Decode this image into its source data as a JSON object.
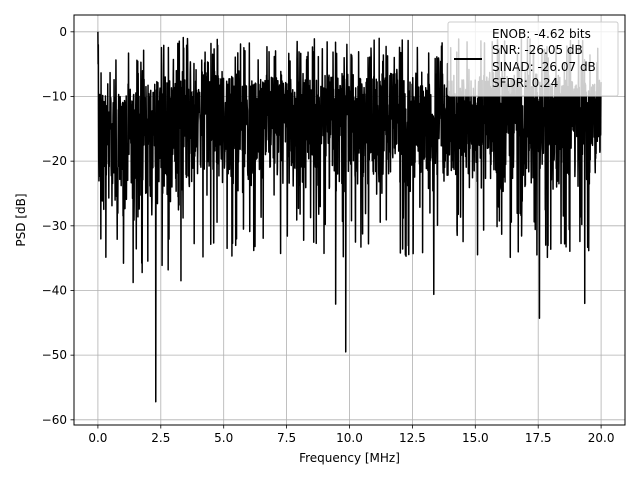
{
  "chart_data": {
    "type": "line",
    "title": "",
    "xlabel": "Frequency [MHz]",
    "ylabel": "PSD [dB]",
    "xlim": [
      -0.95,
      20.95
    ],
    "ylim": [
      -60.8,
      2.6
    ],
    "xticks": [
      0.0,
      2.5,
      5.0,
      7.5,
      10.0,
      12.5,
      15.0,
      17.5,
      20.0
    ],
    "xtick_labels": [
      "0.0",
      "2.5",
      "5.0",
      "7.5",
      "10.0",
      "12.5",
      "15.0",
      "17.5",
      "20.0"
    ],
    "yticks": [
      0,
      -10,
      -20,
      -30,
      -40,
      -50,
      -60
    ],
    "ytick_labels": [
      "0",
      "−10",
      "−20",
      "−30",
      "−40",
      "−50",
      "−60"
    ],
    "grid": true,
    "series": [
      {
        "color": "#000000",
        "x_range": [
          0.0,
          20.0
        ],
        "peak": {
          "x": 0.0,
          "y": 0.0
        },
        "notable_dips": [
          {
            "x": 2.3,
            "y": -57.2
          },
          {
            "x": 9.85,
            "y": -49.5
          },
          {
            "x": 17.55,
            "y": -44.3
          },
          {
            "x": 9.45,
            "y": -42.1
          },
          {
            "x": 19.35,
            "y": -42.0
          },
          {
            "x": 13.35,
            "y": -40.6
          }
        ]
      }
    ],
    "legend": {
      "placement": "upper-right",
      "entries": [
        "ENOB: -4.62 bits",
        "SNR: -26.05 dB",
        "SINAD: -26.07 dB",
        "SFDR: 0.24"
      ]
    }
  }
}
